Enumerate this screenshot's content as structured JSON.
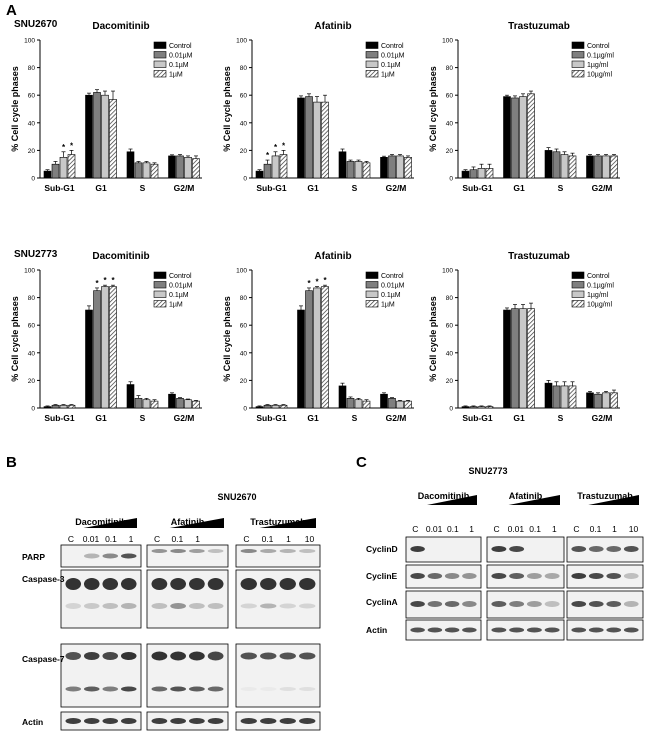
{
  "panels": {
    "a": "A",
    "b": "B",
    "c": "C"
  },
  "cell_lines": {
    "top": "SNU2670",
    "bottom": "SNU2773"
  },
  "chart_data": [
    {
      "type": "bar",
      "title": "Dacomitinib",
      "ylabel": "% Cell cycle phases",
      "ylim": [
        0,
        100
      ],
      "yticks": [
        0,
        20,
        40,
        60,
        80,
        100
      ],
      "categories": [
        "Sub-G1",
        "G1",
        "S",
        "G2/M"
      ],
      "legend_position": "top-right",
      "series": [
        {
          "name": "Control",
          "values": [
            5,
            60,
            19,
            16
          ],
          "errors": [
            1,
            1.5,
            2,
            0.8
          ],
          "stars": [
            false,
            false,
            false,
            false
          ]
        },
        {
          "name": "0.01µM",
          "values": [
            10,
            62,
            11,
            16
          ],
          "errors": [
            2,
            2,
            1,
            1
          ],
          "stars": [
            false,
            false,
            false,
            false
          ]
        },
        {
          "name": "0.1µM",
          "values": [
            15,
            60,
            11,
            15
          ],
          "errors": [
            4,
            3,
            1,
            1
          ],
          "stars": [
            true,
            false,
            false,
            false
          ]
        },
        {
          "name": "1µM",
          "values": [
            17,
            57,
            10,
            14
          ],
          "errors": [
            3,
            6,
            1,
            2
          ],
          "stars": [
            true,
            false,
            false,
            false
          ]
        }
      ]
    },
    {
      "type": "bar",
      "title": "Afatinib",
      "ylabel": "% Cell cycle phases",
      "ylim": [
        0,
        100
      ],
      "yticks": [
        0,
        20,
        40,
        60,
        80,
        100
      ],
      "categories": [
        "Sub-G1",
        "G1",
        "S",
        "G2/M"
      ],
      "legend_position": "top-right",
      "series": [
        {
          "name": "Control",
          "values": [
            5,
            58,
            19,
            15
          ],
          "errors": [
            1,
            1.5,
            2,
            0.8
          ],
          "stars": [
            false,
            false,
            false,
            false
          ]
        },
        {
          "name": "0.01µM",
          "values": [
            10,
            59,
            12,
            16
          ],
          "errors": [
            3,
            2,
            1,
            1
          ],
          "stars": [
            true,
            false,
            false,
            false
          ]
        },
        {
          "name": "0.1µM",
          "values": [
            16,
            55,
            12,
            16
          ],
          "errors": [
            3,
            4,
            1,
            1
          ],
          "stars": [
            true,
            false,
            false,
            false
          ]
        },
        {
          "name": "1µM",
          "values": [
            17,
            55,
            11,
            15
          ],
          "errors": [
            3,
            5,
            1,
            1
          ],
          "stars": [
            true,
            false,
            false,
            false
          ]
        }
      ]
    },
    {
      "type": "bar",
      "title": "Trastuzumab",
      "ylabel": "% Cell cycle phases",
      "ylim": [
        0,
        100
      ],
      "yticks": [
        0,
        20,
        40,
        60,
        80,
        100
      ],
      "categories": [
        "Sub-G1",
        "G1",
        "S",
        "G2/M"
      ],
      "legend_position": "top-right",
      "series": [
        {
          "name": "Control",
          "values": [
            5,
            59,
            20,
            16
          ],
          "errors": [
            1,
            1,
            2,
            1
          ],
          "stars": [
            false,
            false,
            false,
            false
          ]
        },
        {
          "name": "0.1µg/ml",
          "values": [
            6,
            58,
            19,
            16
          ],
          "errors": [
            2,
            1.5,
            2,
            1
          ],
          "stars": [
            false,
            false,
            false,
            false
          ]
        },
        {
          "name": "1µg/ml",
          "values": [
            7,
            59,
            17,
            16
          ],
          "errors": [
            3,
            2,
            2,
            1
          ],
          "stars": [
            false,
            false,
            false,
            false
          ]
        },
        {
          "name": "10µg/ml",
          "values": [
            7,
            61,
            16,
            16
          ],
          "errors": [
            3,
            2,
            2,
            1
          ],
          "stars": [
            false,
            false,
            false,
            false
          ]
        }
      ]
    },
    {
      "type": "bar",
      "title": "Dacomitinib",
      "ylabel": "% Cell cycle phases",
      "ylim": [
        0,
        100
      ],
      "yticks": [
        0,
        20,
        40,
        60,
        80,
        100
      ],
      "categories": [
        "Sub-G1",
        "G1",
        "S",
        "G2/M"
      ],
      "legend_position": "top-right",
      "series": [
        {
          "name": "Control",
          "values": [
            1,
            71,
            17,
            10
          ],
          "errors": [
            0.5,
            3,
            2,
            1
          ],
          "stars": [
            false,
            false,
            false,
            false
          ]
        },
        {
          "name": "0.01µM",
          "values": [
            2,
            85,
            7,
            7
          ],
          "errors": [
            0.5,
            2,
            2,
            0.5
          ],
          "stars": [
            false,
            true,
            false,
            false
          ]
        },
        {
          "name": "0.1µM",
          "values": [
            2,
            88,
            6,
            6
          ],
          "errors": [
            0.5,
            1,
            1,
            0.5
          ],
          "stars": [
            false,
            true,
            false,
            false
          ]
        },
        {
          "name": "1µM",
          "values": [
            2,
            88,
            5,
            5
          ],
          "errors": [
            0.5,
            1,
            1,
            0.5
          ],
          "stars": [
            false,
            true,
            false,
            false
          ]
        }
      ]
    },
    {
      "type": "bar",
      "title": "Afatinib",
      "ylabel": "% Cell cycle phases",
      "ylim": [
        0,
        100
      ],
      "yticks": [
        0,
        20,
        40,
        60,
        80,
        100
      ],
      "categories": [
        "Sub-G1",
        "G1",
        "S",
        "G2/M"
      ],
      "legend_position": "top-right",
      "series": [
        {
          "name": "Control",
          "values": [
            1,
            71,
            16,
            10
          ],
          "errors": [
            0.5,
            3,
            2,
            1
          ],
          "stars": [
            false,
            false,
            false,
            false
          ]
        },
        {
          "name": "0.01µM",
          "values": [
            2,
            85,
            7,
            7
          ],
          "errors": [
            0.5,
            2,
            1,
            0.5
          ],
          "stars": [
            false,
            true,
            false,
            false
          ]
        },
        {
          "name": "0.1µM",
          "values": [
            2,
            87,
            6,
            5
          ],
          "errors": [
            0.5,
            1,
            1,
            0.5
          ],
          "stars": [
            false,
            true,
            false,
            false
          ]
        },
        {
          "name": "1µM",
          "values": [
            2,
            88,
            5,
            5
          ],
          "errors": [
            0.5,
            1,
            1,
            0.5
          ],
          "stars": [
            false,
            true,
            false,
            false
          ]
        }
      ]
    },
    {
      "type": "bar",
      "title": "Trastuzumab",
      "ylabel": "% Cell cycle phases",
      "ylim": [
        0,
        100
      ],
      "yticks": [
        0,
        20,
        40,
        60,
        80,
        100
      ],
      "categories": [
        "Sub-G1",
        "G1",
        "S",
        "G2/M"
      ],
      "legend_position": "top-right",
      "series": [
        {
          "name": "Control",
          "values": [
            1,
            71,
            18,
            11
          ],
          "errors": [
            0.5,
            1.5,
            2,
            1
          ],
          "stars": [
            false,
            false,
            false,
            false
          ]
        },
        {
          "name": "0.1µg/ml",
          "values": [
            1,
            72,
            16,
            10
          ],
          "errors": [
            0.5,
            3,
            3,
            1
          ],
          "stars": [
            false,
            false,
            false,
            false
          ]
        },
        {
          "name": "1µg/ml",
          "values": [
            1,
            72,
            16,
            11
          ],
          "errors": [
            0.5,
            3,
            3,
            1
          ],
          "stars": [
            false,
            false,
            false,
            false
          ]
        },
        {
          "name": "10µg/ml",
          "values": [
            1,
            72,
            16,
            11
          ],
          "errors": [
            0.5,
            4,
            3,
            2
          ],
          "stars": [
            false,
            false,
            false,
            false
          ]
        }
      ]
    }
  ],
  "blot_b": {
    "cell_line": "SNU2670",
    "groups": [
      {
        "name": "Dacomitinib",
        "lanes": [
          "C",
          "0.01",
          "0.1",
          "1"
        ]
      },
      {
        "name": "Afatinib",
        "lanes": [
          "C",
          "0.1",
          "1"
        ]
      },
      {
        "name": "Trastuzumab",
        "lanes": [
          "C",
          "0.1",
          "1",
          "10"
        ]
      }
    ],
    "proteins": [
      "PARP",
      "Caspase-3",
      "Caspase-7",
      "Actin"
    ]
  },
  "blot_c": {
    "cell_line": "SNU2773",
    "groups": [
      {
        "name": "Dacomitinib",
        "lanes": [
          "C",
          "0.01",
          "0.1",
          "1"
        ]
      },
      {
        "name": "Afatinib",
        "lanes": [
          "C",
          "0.01",
          "0.1",
          "1"
        ]
      },
      {
        "name": "Trastuzumab",
        "lanes": [
          "C",
          "0.1",
          "1",
          "10"
        ]
      }
    ],
    "proteins": [
      "CyclinD",
      "CyclinE",
      "CyclinA",
      "Actin"
    ]
  }
}
